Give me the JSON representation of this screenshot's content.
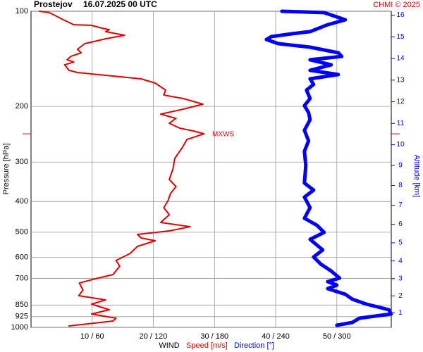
{
  "chart_data": {
    "type": "line",
    "station": "Prostejov",
    "title": "16.07.2025 00 UTC",
    "credit": "CHMI © 2025",
    "ylabel": "Pressure [hPa]",
    "y2label": "Altitude [km]",
    "xlabel": "WIND",
    "ylog": true,
    "grid": true,
    "ylim": [
      1000,
      100
    ],
    "yticks": [
      100,
      200,
      300,
      400,
      500,
      600,
      700,
      850,
      925,
      1000
    ],
    "y2ticks": [
      1,
      2,
      3,
      4,
      5,
      6,
      7,
      8,
      9,
      10,
      11,
      12,
      13,
      14,
      15,
      16
    ],
    "xlim": [
      0,
      58.9
    ],
    "x2lim": [
      0,
      353.4
    ],
    "xticks": [
      {
        "value": 10,
        "label": "10 / 60"
      },
      {
        "value": 20,
        "label": "20 / 120"
      },
      {
        "value": 30,
        "label": "30 / 180"
      },
      {
        "value": 40,
        "label": "40 / 240"
      },
      {
        "value": 50,
        "label": "50 / 300"
      }
    ],
    "annotations": [
      {
        "text": "MXWS",
        "y": 244.2
      }
    ],
    "series": [
      {
        "name": "Speed [m/s]",
        "color": "#e00000",
        "y": [
          100,
          101.0,
          106.4,
          110.3,
          110.8,
          113.1,
          114.3,
          116.0,
          119.1,
          122.2,
          126.6,
          131.9,
          135.3,
          138.9,
          142.4,
          144.7,
          147.7,
          153.8,
          156.2,
          160.3,
          163.6,
          168.7,
          177.6,
          184.1,
          188.9,
          196.8,
          204.0,
          211.5,
          218.1,
          226.1,
          234.3,
          239.2,
          244.2,
          254.4,
          270.4,
          292.1,
          315.4,
          340.7,
          358.5,
          377.4,
          397.2,
          418.1,
          440.3,
          465.8,
          480.4,
          495.4,
          508.2,
          521.4,
          532.2,
          554.5,
          583.8,
          614.5,
          640.3,
          680.8,
          702.1,
          724.1,
          762.2,
          793.9,
          818.7,
          844.4,
          879.8,
          907.3,
          935.5,
          955.0,
          989.8
        ],
        "values": [
          1.4,
          3.0,
          5.3,
          7.0,
          9.9,
          11.6,
          12.8,
          12.2,
          15.3,
          12.2,
          8.8,
          7.6,
          8.2,
          6.5,
          5.9,
          7.0,
          5.5,
          6.2,
          7.6,
          13.4,
          18.0,
          20.3,
          22.0,
          21.7,
          24.9,
          28.1,
          24.9,
          21.2,
          23.7,
          22.6,
          24.3,
          26.6,
          28.3,
          25.5,
          24.7,
          23.5,
          23.2,
          22.6,
          23.7,
          22.8,
          22.4,
          21.7,
          22.6,
          21.2,
          26.0,
          22.6,
          17.4,
          18.0,
          20.3,
          17.4,
          16.2,
          13.9,
          14.5,
          13.4,
          10.5,
          7.9,
          8.5,
          7.8,
          12.2,
          9.9,
          12.8,
          9.9,
          13.9,
          13.4,
          6.2
        ]
      },
      {
        "name": "Direction [°]",
        "color": "#0000ff",
        "axis": "x2",
        "y": [
          100,
          101.0,
          106.4,
          110.3,
          116.0,
          117.8,
          120.3,
          122.8,
          126.6,
          129.9,
          135.3,
          138.9,
          142.4,
          147.7,
          153.8,
          158.6,
          163.6,
          170.4,
          177.6,
          188.9,
          198.8,
          209.3,
          220.3,
          237.9,
          257.0,
          277.5,
          307.4,
          349.5,
          367.9,
          387.2,
          418.1,
          451.7,
          475.6,
          500.6,
          526.8,
          569.0,
          598.9,
          630.4,
          663.5,
          698.5,
          716.7,
          735.3,
          754.4,
          785.8,
          814.5,
          844.4,
          879.8,
          907.3,
          935.5,
          964.7,
          984.7
        ],
        "values": [
          246.1,
          287.5,
          308.3,
          291.0,
          273.7,
          256.4,
          235.7,
          230.9,
          242.6,
          273.7,
          301.4,
          304.8,
          273.7,
          294.5,
          273.7,
          301.4,
          273.7,
          277.2,
          270.3,
          273.7,
          268.2,
          272.3,
          273.7,
          268.2,
          272.3,
          268.2,
          269.6,
          268.2,
          277.2,
          268.2,
          273.7,
          268.2,
          280.6,
          287.5,
          273.7,
          286.2,
          277.2,
          284.1,
          294.5,
          302.7,
          291.0,
          300.0,
          291.0,
          308.3,
          315.2,
          329.0,
          351.1,
          353.2,
          322.1,
          315.2,
          300.0
        ]
      }
    ]
  }
}
